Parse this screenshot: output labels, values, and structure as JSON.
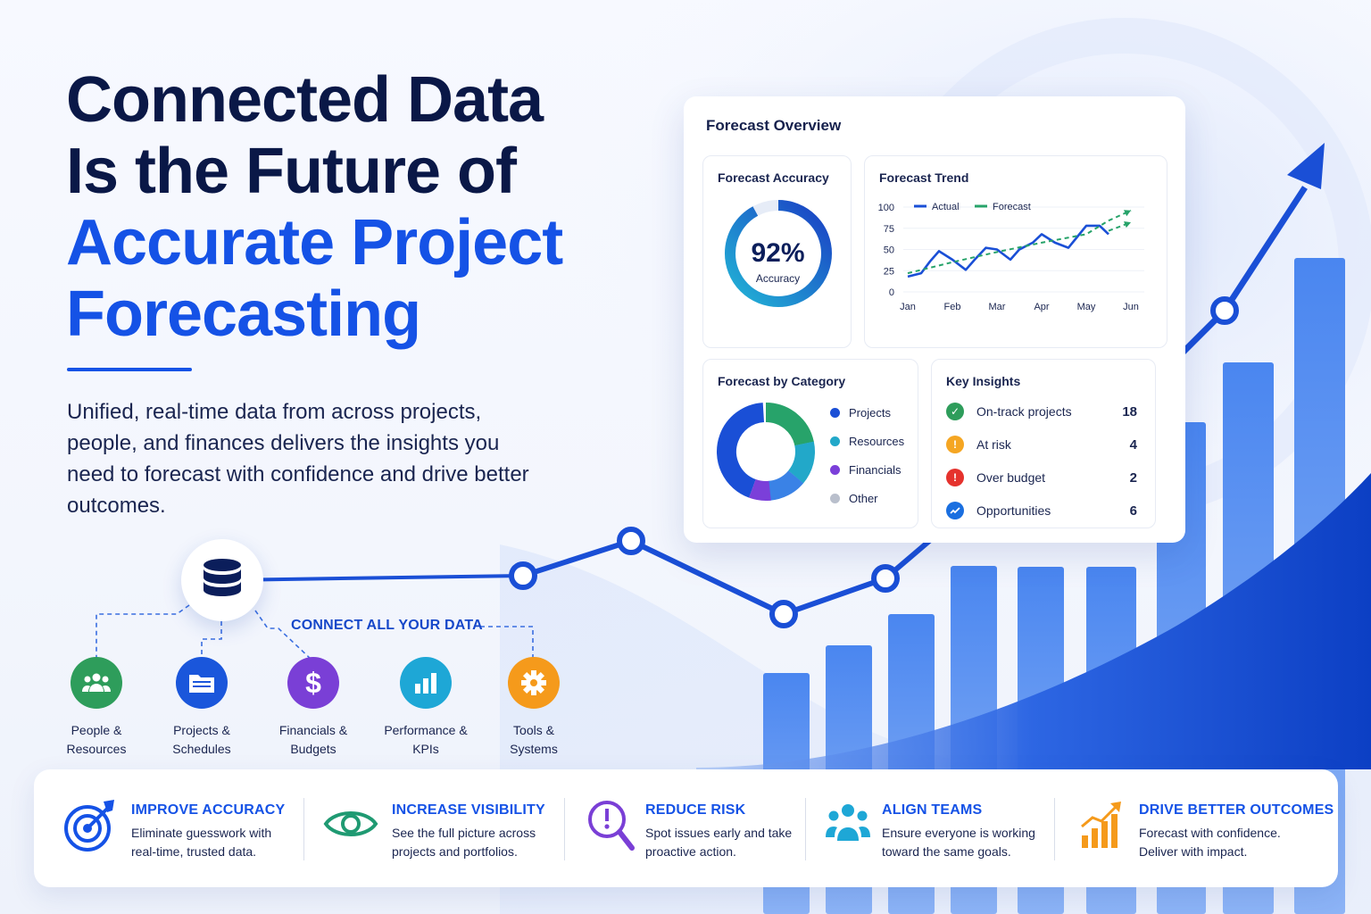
{
  "hero": {
    "title_line1": "Connected Data",
    "title_line2": "Is the Future of",
    "title_line3": "Accurate Project",
    "title_line4": "Forecasting",
    "subtitle": "Unified, real-time data from across projects, people, and finances delivers the insights you need to forecast with confidence and drive better outcomes."
  },
  "connect": {
    "label": "CONNECT ALL YOUR DATA",
    "sources": [
      {
        "line1": "People &",
        "line2": "Resources",
        "color": "#2e9d5b",
        "icon": "people-icon"
      },
      {
        "line1": "Projects &",
        "line2": "Schedules",
        "color": "#1a56db",
        "icon": "folder-icon"
      },
      {
        "line1": "Financials &",
        "line2": "Budgets",
        "color": "#7a3fd6",
        "icon": "dollar-icon"
      },
      {
        "line1": "Performance &",
        "line2": "KPIs",
        "color": "#1ea7d6",
        "icon": "bar-chart-icon"
      },
      {
        "line1": "Tools &",
        "line2": "Systems",
        "color": "#f59a1b",
        "icon": "gear-icon"
      }
    ]
  },
  "dashboard": {
    "title": "Forecast Overview",
    "accuracy": {
      "title": "Forecast Accuracy",
      "value": "92%",
      "caption": "Accuracy",
      "fraction": 0.92
    },
    "trend": {
      "title": "Forecast Trend",
      "legend_actual": "Actual",
      "legend_forecast": "Forecast"
    },
    "category": {
      "title": "Forecast by Category",
      "items": [
        {
          "label": "Projects",
          "color": "#1a4fd6"
        },
        {
          "label": "Resources",
          "color": "#22a8c9"
        },
        {
          "label": "Financials",
          "color": "#7b3fd9"
        },
        {
          "label": "Other",
          "color": "#b9bfcc"
        }
      ]
    },
    "insights": {
      "title": "Key Insights",
      "rows": [
        {
          "label": "On-track projects",
          "value": "18",
          "color": "#2e9d5b",
          "icon": "check-icon"
        },
        {
          "label": "At risk",
          "value": "4",
          "color": "#f5a623",
          "icon": "warning-icon"
        },
        {
          "label": "Over budget",
          "value": "2",
          "color": "#e5322d",
          "icon": "alert-icon"
        },
        {
          "label": "Opportunities",
          "value": "6",
          "color": "#1a6fe0",
          "icon": "trend-up-icon"
        }
      ]
    }
  },
  "chart_data": {
    "type": "line",
    "title": "Forecast Trend",
    "categories": [
      "Jan",
      "Feb",
      "Mar",
      "Apr",
      "May",
      "Jun"
    ],
    "yticks": [
      "0",
      "25",
      "50",
      "75",
      "100"
    ],
    "ylim": [
      0,
      100
    ],
    "series": [
      {
        "name": "Actual",
        "color": "#1a4fd6",
        "x": [
          0,
          0.3,
          0.5,
          0.7,
          1,
          1.3,
          1.5,
          1.75,
          2,
          2.3,
          2.5,
          2.8,
          3,
          3.3,
          3.6,
          3.8,
          4,
          4.3,
          4.5
        ],
        "y": [
          18,
          22,
          36,
          48,
          38,
          26,
          38,
          52,
          50,
          38,
          50,
          58,
          68,
          58,
          52,
          65,
          78,
          78,
          68
        ]
      },
      {
        "name": "Forecast",
        "color": "#27a36a",
        "x": [
          0,
          1,
          2,
          3,
          4,
          4.5,
          5
        ],
        "y": [
          22,
          35,
          47,
          58,
          68,
          84,
          96
        ]
      },
      {
        "name": "Forecast",
        "color": "#27a36a",
        "x": [
          4.5,
          5
        ],
        "y": [
          72,
          82
        ]
      }
    ]
  },
  "benefits": [
    {
      "title": "IMPROVE ACCURACY",
      "line1": "Eliminate guesswork with",
      "line2": "real-time, trusted data.",
      "icon": "target-icon"
    },
    {
      "title": "INCREASE VISIBILITY",
      "line1": "See the full picture across",
      "line2": "projects and portfolios.",
      "icon": "eye-icon"
    },
    {
      "title": "REDUCE RISK",
      "line1": "Spot issues early and take",
      "line2": "proactive action.",
      "icon": "magnifier-alert-icon"
    },
    {
      "title": "ALIGN TEAMS",
      "line1": "Ensure everyone is working",
      "line2": "toward the same goals.",
      "icon": "team-icon"
    },
    {
      "title": "DRIVE BETTER OUTCOMES",
      "line1": "Forecast with confidence.",
      "line2": "Deliver with impact.",
      "icon": "growth-chart-icon"
    }
  ],
  "colors": {
    "primary": "#1552e6",
    "navy": "#0a1847"
  }
}
